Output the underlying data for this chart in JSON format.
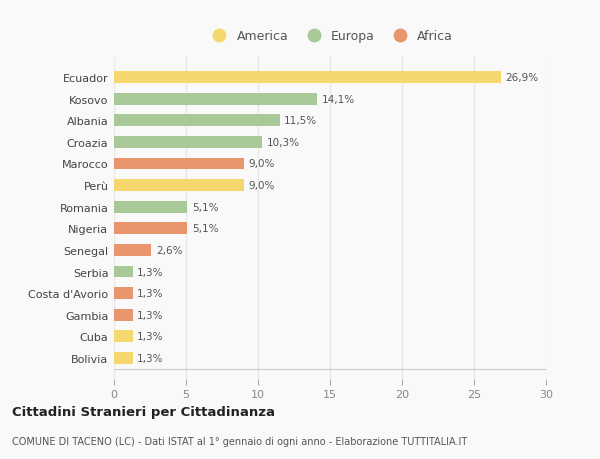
{
  "categories": [
    "Bolivia",
    "Cuba",
    "Gambia",
    "Costa d'Avorio",
    "Serbia",
    "Senegal",
    "Nigeria",
    "Romania",
    "Perù",
    "Marocco",
    "Croazia",
    "Albania",
    "Kosovo",
    "Ecuador"
  ],
  "values": [
    1.3,
    1.3,
    1.3,
    1.3,
    1.3,
    2.6,
    5.1,
    5.1,
    9.0,
    9.0,
    10.3,
    11.5,
    14.1,
    26.9
  ],
  "labels": [
    "1,3%",
    "1,3%",
    "1,3%",
    "1,3%",
    "1,3%",
    "2,6%",
    "5,1%",
    "5,1%",
    "9,0%",
    "9,0%",
    "10,3%",
    "11,5%",
    "14,1%",
    "26,9%"
  ],
  "colors": [
    "#f5d76e",
    "#f5d76e",
    "#e8956d",
    "#e8956d",
    "#a8c897",
    "#e8956d",
    "#e8956d",
    "#a8c897",
    "#f5d76e",
    "#e8956d",
    "#a8c897",
    "#a8c897",
    "#a8c897",
    "#f5d76e"
  ],
  "legend_labels": [
    "America",
    "Europa",
    "Africa"
  ],
  "legend_colors": [
    "#f5d76e",
    "#a8c897",
    "#e8956d"
  ],
  "xlim": [
    0,
    30
  ],
  "xticks": [
    0,
    5,
    10,
    15,
    20,
    25,
    30
  ],
  "title": "Cittadini Stranieri per Cittadinanza",
  "subtitle": "COMUNE DI TACENO (LC) - Dati ISTAT al 1° gennaio di ogni anno - Elaborazione TUTTITALIA.IT",
  "bg_color": "#f9f9f9",
  "grid_color": "#e8e8e8",
  "bar_height": 0.55
}
